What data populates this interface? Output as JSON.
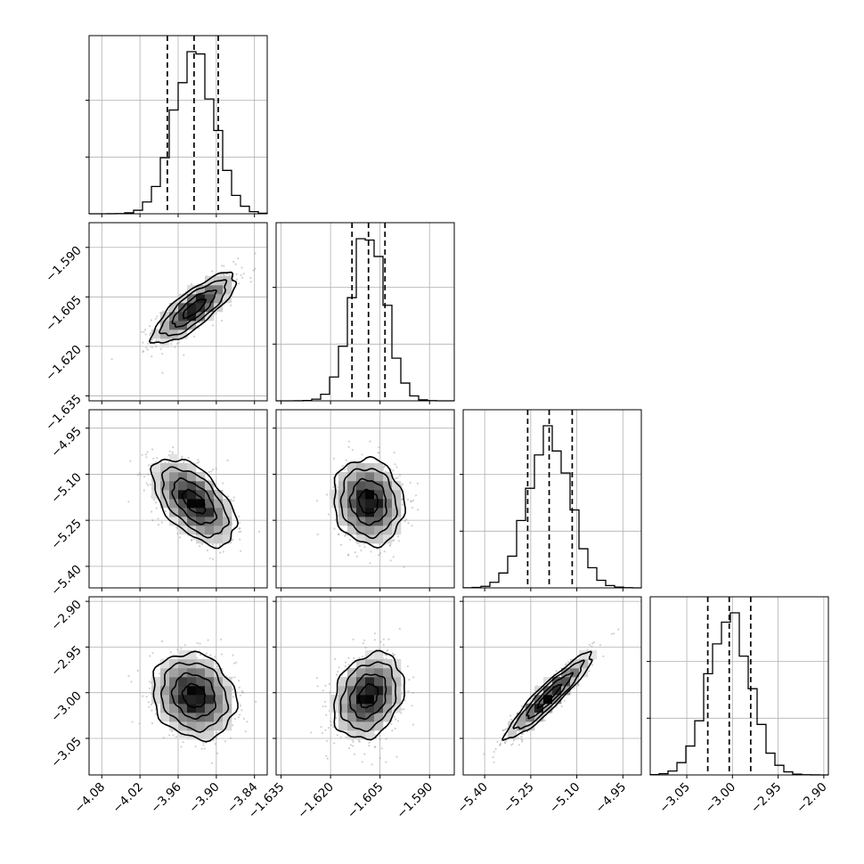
{
  "chart_data": {
    "type": "corner",
    "grid": true,
    "parameters": [
      {
        "index": 0,
        "range": [
          -4.1,
          -3.82
        ],
        "ticks": [
          "−4.08",
          "−4.02",
          "−3.96",
          "−3.90",
          "−3.84"
        ],
        "mean": -3.935,
        "sd": 0.032,
        "quantiles": [
          -3.977,
          -3.935,
          -3.897
        ],
        "hist_peak_bin": [
          -3.95,
          -3.925
        ]
      },
      {
        "index": 1,
        "range": [
          -1.6365,
          -1.5825
        ],
        "ticks": [
          "−1.635",
          "−1.620",
          "−1.605",
          "−1.590"
        ],
        "mean": -1.6085,
        "sd": 0.0052,
        "quantiles": [
          -1.6135,
          -1.6085,
          -1.6035
        ]
      },
      {
        "index": 2,
        "range": [
          -5.47,
          -4.89
        ],
        "ticks": [
          "−5.40",
          "−5.25",
          "−5.10",
          "−4.95"
        ],
        "mean": -5.19,
        "sd": 0.069,
        "quantiles": [
          -5.26,
          -5.19,
          -5.115
        ]
      },
      {
        "index": 3,
        "range": [
          -3.09,
          -2.895
        ],
        "ticks": [
          "−3.05",
          "−3.00",
          "−2.95",
          "−2.90"
        ],
        "mean": -3.0035,
        "sd": 0.023,
        "quantiles": [
          -3.027,
          -3.0035,
          -2.98
        ]
      }
    ],
    "correlations": [
      {
        "x": 0,
        "y": 1,
        "rho": 0.8
      },
      {
        "x": 0,
        "y": 2,
        "rho": -0.55
      },
      {
        "x": 1,
        "y": 2,
        "rho": -0.1
      },
      {
        "x": 0,
        "y": 3,
        "rho": -0.15
      },
      {
        "x": 1,
        "y": 3,
        "rho": 0.25
      },
      {
        "x": 2,
        "y": 3,
        "rho": 0.93
      }
    ],
    "diagonal": "histogram with 16%, 50%, 84% dashed quantile lines",
    "off_diagonal": "2D density: grey scatter points, greyscale 2D histogram, black contours"
  }
}
